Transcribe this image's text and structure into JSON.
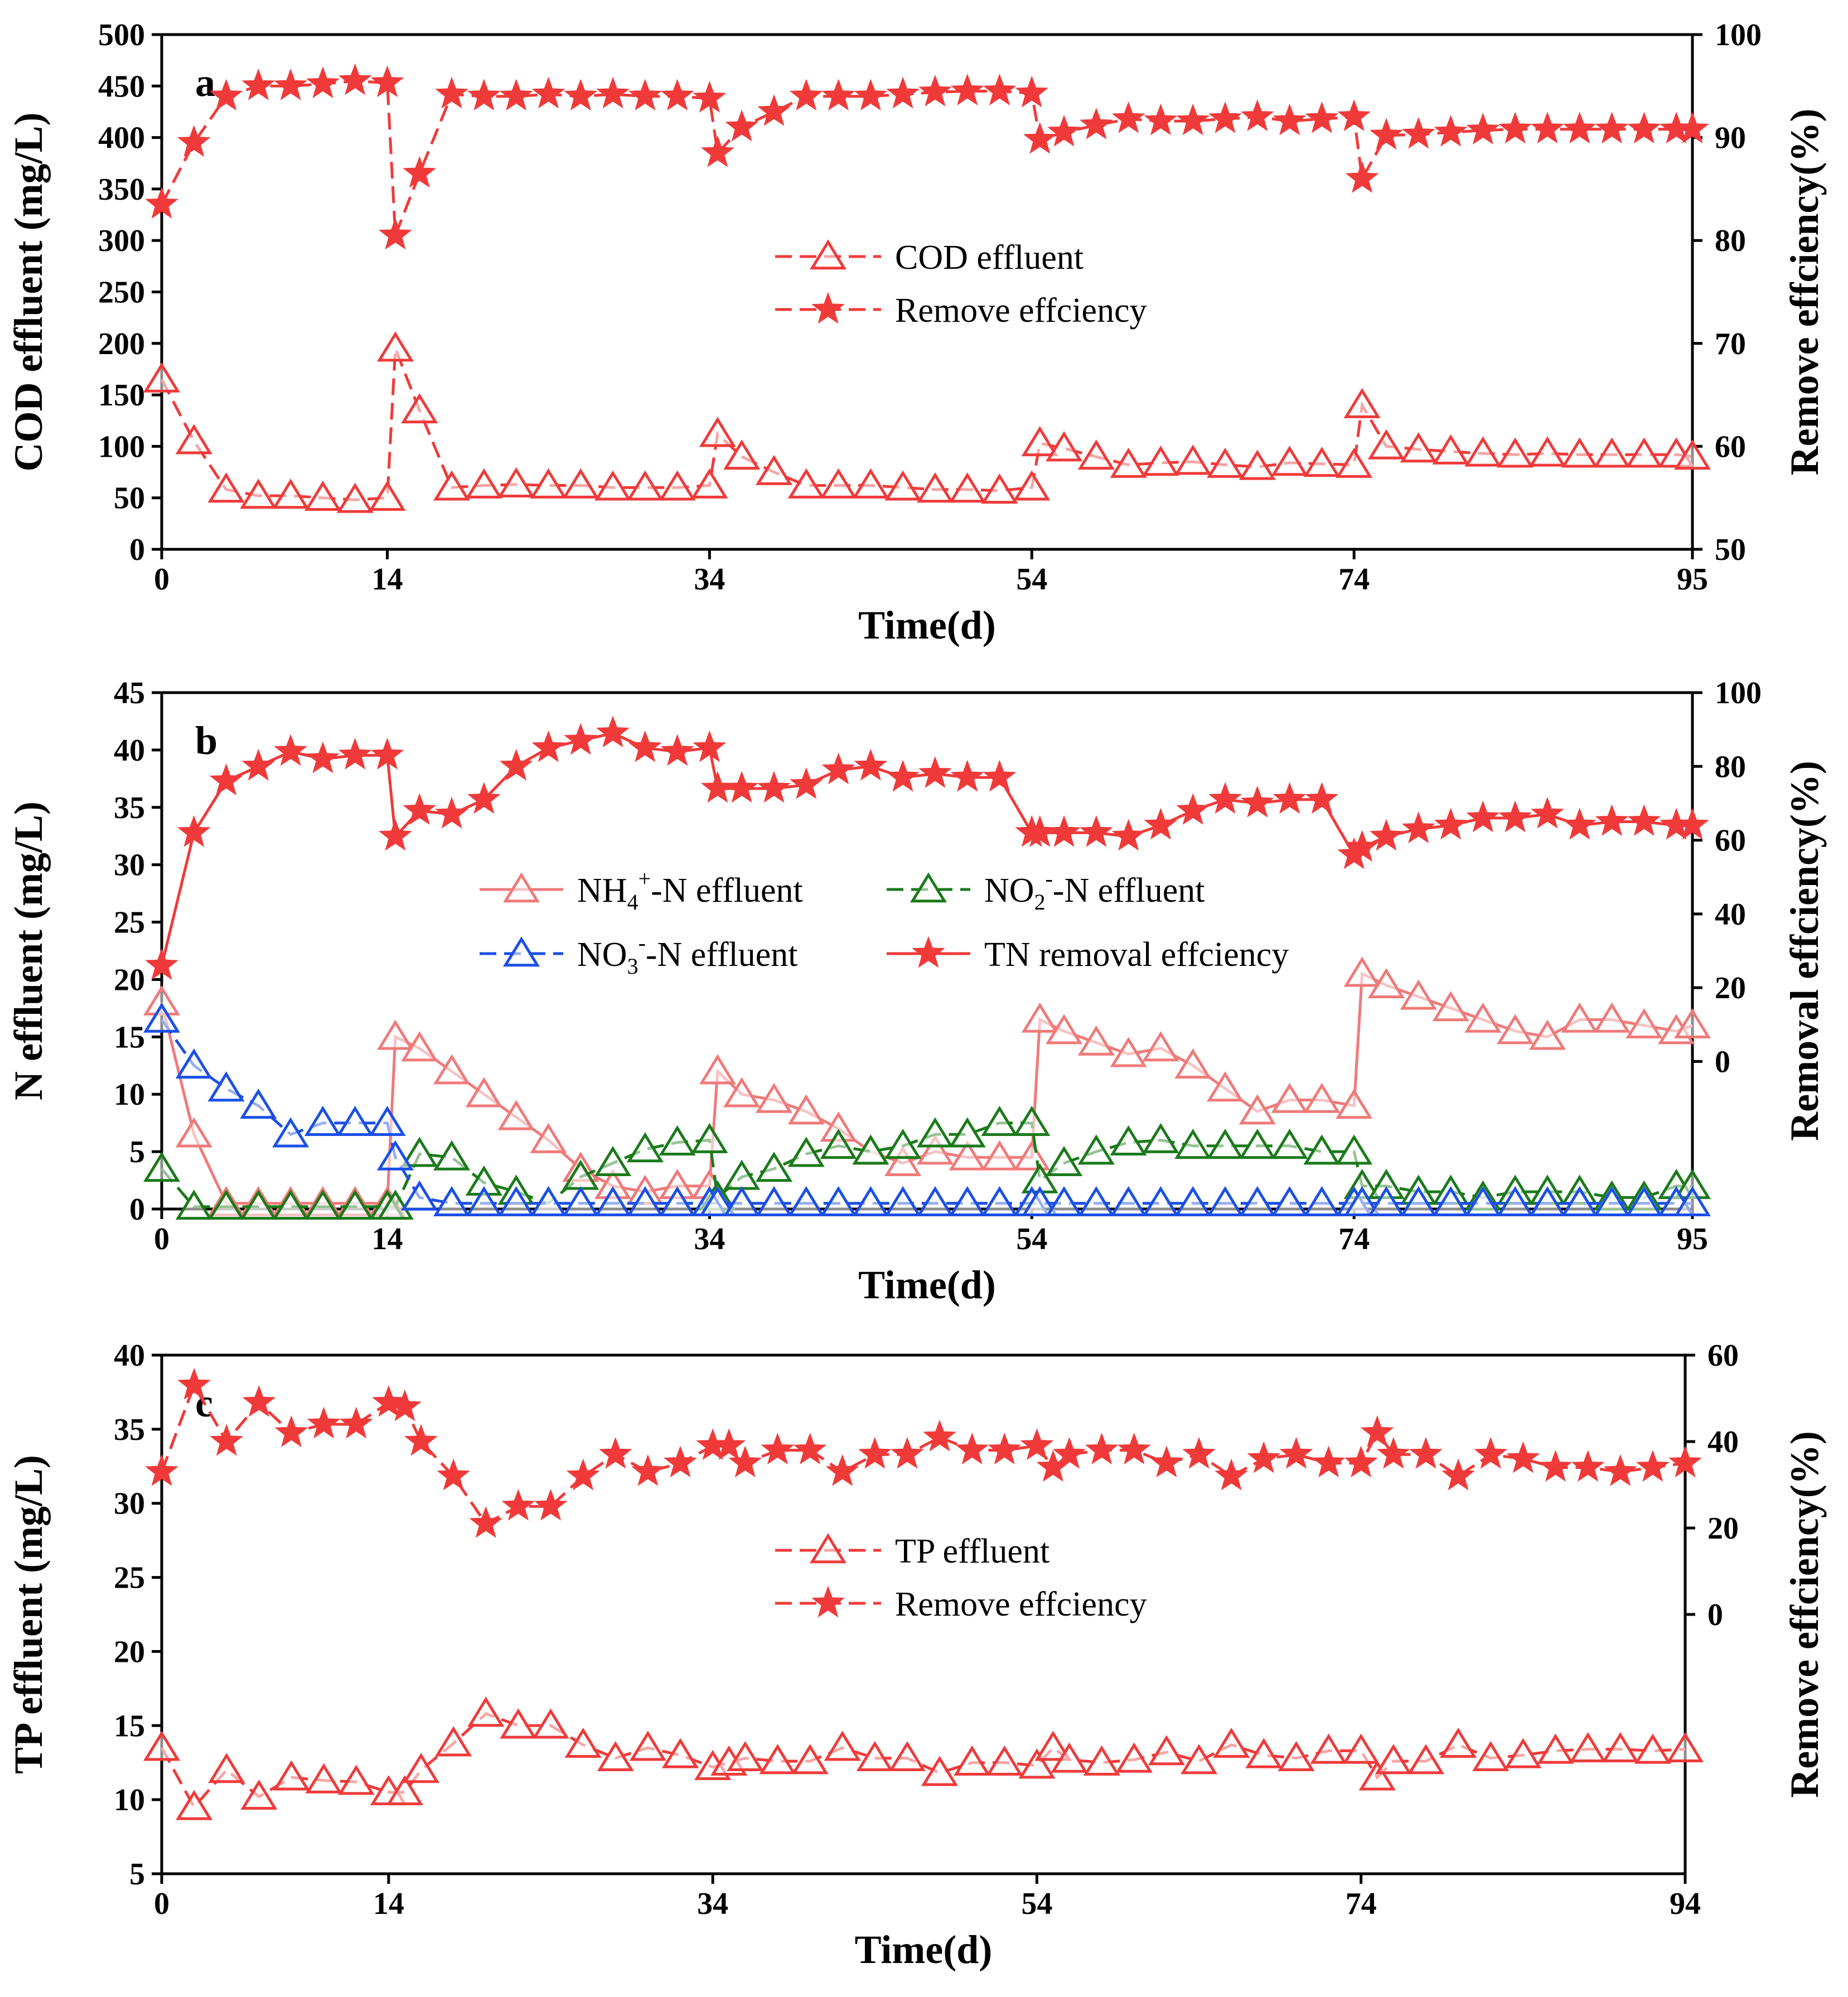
{
  "colors": {
    "red": "#f03a3a",
    "pink": "#f07a7a",
    "green": "#1a7a1a",
    "blue": "#1a4fe8",
    "axis": "#000000"
  },
  "chart_data": [
    {
      "id": "a",
      "type": "line",
      "panel_label": "a",
      "xlabel": "Time(d)",
      "ylabel": "COD effluent (mg/L)",
      "ylabel_right": "Remove effciency(%)",
      "xlim": [
        0,
        95
      ],
      "ylim": [
        0,
        500
      ],
      "ylim_right": [
        50,
        100
      ],
      "x_ticks": [
        0,
        14,
        34,
        54,
        74,
        95
      ],
      "y_ticks": [
        0,
        50,
        100,
        150,
        200,
        250,
        300,
        350,
        400,
        450,
        500
      ],
      "y_ticks_right": [
        50,
        60,
        70,
        80,
        90,
        100
      ],
      "legend_position": "center",
      "series": [
        {
          "name": "COD effluent",
          "axis": "left",
          "marker": "triangle",
          "color_key": "red",
          "line": "dash",
          "x": [
            0,
            2,
            4,
            6,
            8,
            10,
            12,
            14,
            14.5,
            16,
            18,
            20,
            22,
            24,
            26,
            28,
            30,
            32,
            34,
            34.5,
            36,
            38,
            40,
            42,
            44,
            46,
            48,
            50,
            52,
            54,
            54.5,
            56,
            58,
            60,
            62,
            64,
            66,
            68,
            70,
            72,
            74,
            74.5,
            76,
            78,
            80,
            82,
            84,
            86,
            88,
            90,
            92,
            94,
            95
          ],
          "values": [
            165,
            105,
            58,
            52,
            52,
            50,
            48,
            50,
            195,
            135,
            60,
            62,
            63,
            62,
            62,
            60,
            60,
            60,
            62,
            112,
            90,
            75,
            62,
            62,
            62,
            60,
            58,
            58,
            57,
            60,
            103,
            98,
            90,
            82,
            84,
            85,
            82,
            80,
            84,
            83,
            82,
            140,
            100,
            97,
            95,
            93,
            92,
            93,
            92,
            92,
            92,
            92,
            90
          ]
        },
        {
          "name": "Remove effciency",
          "axis": "right",
          "marker": "star",
          "color_key": "red",
          "line": "dash",
          "x": [
            0,
            2,
            4,
            6,
            8,
            10,
            12,
            14,
            14.5,
            16,
            18,
            20,
            22,
            24,
            26,
            28,
            30,
            32,
            34,
            34.5,
            36,
            38,
            40,
            42,
            44,
            46,
            48,
            50,
            52,
            54,
            54.5,
            56,
            58,
            60,
            62,
            64,
            66,
            68,
            70,
            72,
            74,
            74.5,
            76,
            78,
            80,
            82,
            84,
            86,
            88,
            90,
            92,
            94,
            95
          ],
          "values": [
            83.5,
            89.5,
            94,
            95,
            95,
            95.2,
            95.5,
            95.3,
            80.5,
            86.5,
            94.2,
            94,
            94,
            94.2,
            94,
            94.2,
            94,
            94,
            93.8,
            88.5,
            91,
            92.5,
            94,
            94,
            94,
            94.2,
            94.4,
            94.5,
            94.5,
            94.3,
            89.8,
            90.5,
            91.2,
            91.8,
            91.6,
            91.6,
            91.8,
            92,
            91.6,
            91.8,
            92,
            86,
            90.2,
            90.3,
            90.5,
            90.7,
            90.8,
            90.8,
            90.8,
            90.8,
            90.8,
            90.8,
            90.8
          ]
        }
      ]
    },
    {
      "id": "b",
      "type": "line",
      "panel_label": "b",
      "xlabel": "Time(d)",
      "ylabel": "N effluent (mg/L)",
      "ylabel_right": "Removal effciency(%)",
      "xlim": [
        0,
        95
      ],
      "ylim": [
        0,
        45
      ],
      "ylim_right": [
        -40,
        100
      ],
      "x_ticks": [
        0,
        14,
        34,
        54,
        74,
        95
      ],
      "y_ticks": [
        0,
        5,
        10,
        15,
        20,
        25,
        30,
        35,
        40,
        45
      ],
      "y_ticks_right": [
        0,
        20,
        40,
        60,
        80,
        100
      ],
      "legend_position": "center",
      "series": [
        {
          "name": "NH4+-N effluent",
          "label_base": "NH",
          "label_sub": "4",
          "label_sup": "+",
          "label_tail": "-N effluent",
          "axis": "left",
          "marker": "triangle",
          "color_key": "pink",
          "line": "solid",
          "x": [
            0,
            2,
            4,
            6,
            8,
            10,
            12,
            14,
            14.5,
            16,
            18,
            20,
            22,
            24,
            26,
            28,
            30,
            32,
            34,
            34.5,
            36,
            38,
            40,
            42,
            44,
            46,
            48,
            50,
            52,
            54,
            54.5,
            56,
            58,
            60,
            62,
            64,
            66,
            68,
            70,
            72,
            74,
            74.5,
            76,
            78,
            80,
            82,
            84,
            86,
            88,
            90,
            92,
            94,
            95
          ],
          "values": [
            18,
            6.5,
            0.5,
            0.5,
            0.5,
            0.5,
            0.5,
            0.5,
            15,
            14,
            12,
            10,
            8,
            6,
            3.5,
            2,
            1.5,
            2,
            2,
            12,
            10,
            9.5,
            8.5,
            7,
            5,
            4,
            5,
            4.5,
            4.5,
            4.5,
            16.5,
            15.5,
            14.5,
            13.5,
            14,
            12.5,
            10.5,
            8.5,
            9.5,
            9.5,
            9,
            20.5,
            19.5,
            18.5,
            17.5,
            16.5,
            15.5,
            15,
            16.5,
            16.5,
            16,
            15.5,
            16
          ]
        },
        {
          "name": "NO2--N effluent",
          "label_base": "NO",
          "label_sub": "2",
          "label_sup": "-",
          "label_tail": "-N effluent",
          "axis": "left",
          "marker": "triangle",
          "color_key": "green",
          "line": "dash",
          "x": [
            0,
            2,
            4,
            6,
            8,
            10,
            12,
            14,
            14.5,
            16,
            18,
            20,
            22,
            24,
            26,
            28,
            30,
            32,
            34,
            34.5,
            36,
            38,
            40,
            42,
            44,
            46,
            48,
            50,
            52,
            54,
            54.5,
            56,
            58,
            60,
            62,
            64,
            66,
            68,
            70,
            72,
            74,
            74.5,
            76,
            78,
            80,
            82,
            84,
            86,
            88,
            90,
            92,
            94,
            95
          ],
          "values": [
            3.5,
            0.2,
            0.2,
            0.2,
            0.2,
            0.2,
            0.2,
            0.2,
            0.2,
            4.8,
            4.5,
            2.3,
            1.5,
            0.5,
            2.8,
            4,
            5.2,
            5.8,
            6,
            1,
            2.8,
            3.5,
            4.8,
            5.5,
            5,
            5.5,
            6.5,
            6.5,
            7.5,
            7.5,
            2.5,
            4,
            5,
            5.8,
            6,
            5.5,
            5.5,
            5.5,
            5.5,
            5,
            5,
            2,
            2,
            1.5,
            1.5,
            1,
            1.5,
            1.5,
            1.5,
            1,
            1,
            2,
            2
          ]
        },
        {
          "name": "NO3--N effluent",
          "label_base": "NO",
          "label_sub": "3",
          "label_sup": "-",
          "label_tail": "-N effluent",
          "axis": "left",
          "marker": "triangle",
          "color_key": "blue",
          "line": "dash",
          "x": [
            0,
            2,
            4,
            6,
            8,
            10,
            12,
            14,
            14.5,
            16,
            18,
            20,
            22,
            24,
            26,
            28,
            30,
            32,
            34,
            34.5,
            36,
            38,
            40,
            42,
            44,
            46,
            48,
            50,
            52,
            54,
            54.5,
            56,
            58,
            60,
            62,
            64,
            66,
            68,
            70,
            72,
            74,
            74.5,
            76,
            78,
            80,
            82,
            84,
            86,
            88,
            90,
            92,
            94,
            95
          ],
          "values": [
            16.5,
            12.5,
            10.5,
            9,
            6.5,
            7.5,
            7.5,
            7.5,
            4.5,
            1,
            0.5,
            0.5,
            0.5,
            0.5,
            0.5,
            0.5,
            0.5,
            0.5,
            0.5,
            0.5,
            0.5,
            0.5,
            0.5,
            0.5,
            0.5,
            0.5,
            0.5,
            0.5,
            0.5,
            0.5,
            0.5,
            0.5,
            0.5,
            0.5,
            0.5,
            0.5,
            0.5,
            0.5,
            0.5,
            0.5,
            0.5,
            0.5,
            0.5,
            0.5,
            0.5,
            0.5,
            0.5,
            0.5,
            0.5,
            0.5,
            0.5,
            0.5,
            0.5
          ]
        },
        {
          "name": "TN removal effciency",
          "axis": "right",
          "marker": "star",
          "color_key": "red",
          "line": "solid",
          "x": [
            0,
            2,
            4,
            6,
            8,
            10,
            12,
            14,
            14.5,
            16,
            18,
            20,
            22,
            24,
            26,
            28,
            30,
            32,
            34,
            34.5,
            36,
            38,
            40,
            42,
            44,
            46,
            48,
            50,
            52,
            54,
            54.5,
            56,
            58,
            60,
            62,
            64,
            66,
            68,
            70,
            72,
            74,
            74.5,
            76,
            78,
            80,
            82,
            84,
            86,
            88,
            90,
            92,
            94,
            95
          ],
          "values": [
            26,
            62,
            76,
            80,
            84,
            82,
            83,
            83,
            61,
            68,
            67,
            71,
            80,
            85,
            87,
            89,
            85,
            84,
            85,
            74,
            74,
            74,
            75,
            79,
            80,
            77,
            78,
            77,
            77,
            62,
            62,
            62,
            62,
            61,
            64,
            68,
            71,
            70,
            71,
            71,
            56,
            58,
            61,
            63,
            64,
            66,
            66,
            67,
            64,
            65,
            65,
            64,
            64
          ]
        }
      ]
    },
    {
      "id": "c",
      "type": "line",
      "panel_label": "c",
      "xlabel": "Time(d)",
      "ylabel": "TP effluent (mg/L)",
      "ylabel_right": "Remove effciency(%)",
      "xlim": [
        0,
        94
      ],
      "ylim": [
        5,
        40
      ],
      "ylim_right": [
        -60,
        60
      ],
      "x_ticks": [
        0,
        14,
        34,
        54,
        74,
        94
      ],
      "y_ticks": [
        5,
        10,
        15,
        20,
        25,
        30,
        35,
        40
      ],
      "y_ticks_right": [
        0,
        20,
        40,
        60
      ],
      "legend_position": "center",
      "series": [
        {
          "name": "TP effluent",
          "axis": "left",
          "marker": "triangle",
          "color_key": "red",
          "line": "dash",
          "x": [
            0,
            2,
            4,
            6,
            8,
            10,
            12,
            14,
            15,
            16,
            18,
            20,
            22,
            24,
            26,
            28,
            30,
            32,
            34,
            35,
            36,
            38,
            40,
            42,
            44,
            46,
            48,
            50,
            52,
            54,
            55,
            56,
            58,
            60,
            62,
            64,
            66,
            68,
            70,
            72,
            74,
            75,
            76,
            78,
            80,
            82,
            84,
            86,
            88,
            90,
            92,
            94
          ],
          "values": [
            13.5,
            9.5,
            12,
            10.2,
            11.5,
            11.3,
            11.2,
            10.5,
            10.5,
            12,
            13.8,
            15.8,
            15,
            15,
            13.7,
            12.8,
            13.5,
            13,
            12.2,
            12.5,
            12.8,
            12.6,
            12.6,
            13.5,
            12.8,
            12.8,
            11.8,
            12.5,
            12.5,
            12.3,
            13.5,
            12.7,
            12.5,
            12.7,
            13.2,
            12.6,
            13.7,
            13,
            12.8,
            13.3,
            13.3,
            11.5,
            12.6,
            12.6,
            13.7,
            12.8,
            13,
            13.3,
            13.4,
            13.4,
            13.3,
            13.4
          ]
        },
        {
          "name": "Remove effciency",
          "axis": "right",
          "marker": "star",
          "color_key": "red",
          "line": "dash",
          "x": [
            0,
            2,
            4,
            6,
            8,
            10,
            12,
            14,
            15,
            16,
            18,
            20,
            22,
            24,
            26,
            28,
            30,
            32,
            34,
            35,
            36,
            38,
            40,
            42,
            44,
            46,
            48,
            50,
            52,
            54,
            55,
            56,
            58,
            60,
            62,
            64,
            66,
            68,
            70,
            72,
            74,
            75,
            76,
            78,
            80,
            82,
            84,
            86,
            88,
            90,
            92,
            94
          ],
          "values": [
            33,
            53,
            40,
            49,
            42,
            44,
            44,
            49,
            48,
            40,
            32,
            21,
            25,
            25,
            32,
            37,
            33,
            35,
            39,
            39,
            35,
            38,
            38,
            33,
            37,
            37,
            41,
            38,
            38,
            39,
            34,
            37,
            38,
            38,
            35,
            37,
            32,
            36,
            37,
            35,
            35,
            42,
            37,
            37,
            32,
            37,
            36,
            34,
            34,
            33,
            34,
            35
          ]
        }
      ]
    }
  ]
}
